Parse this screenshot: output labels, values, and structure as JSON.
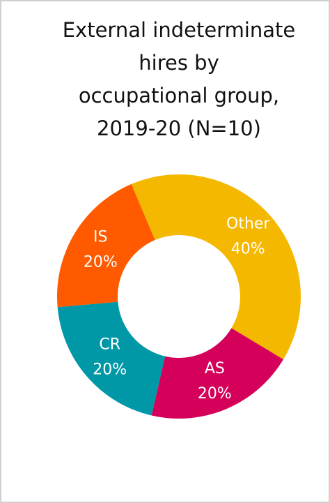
{
  "chart_data": {
    "type": "pie",
    "title": "External indeterminate\nhires by\noccupational group,\n2019-20 (N=10)",
    "categories": [
      "Other",
      "AS",
      "CR",
      "IS"
    ],
    "values": [
      40,
      20,
      20,
      20
    ],
    "value_labels": [
      "40%",
      "20%",
      "20%",
      "20%"
    ],
    "colors": [
      "#f5b800",
      "#d4005a",
      "#0097a7",
      "#ff5a00"
    ],
    "donut": true
  }
}
